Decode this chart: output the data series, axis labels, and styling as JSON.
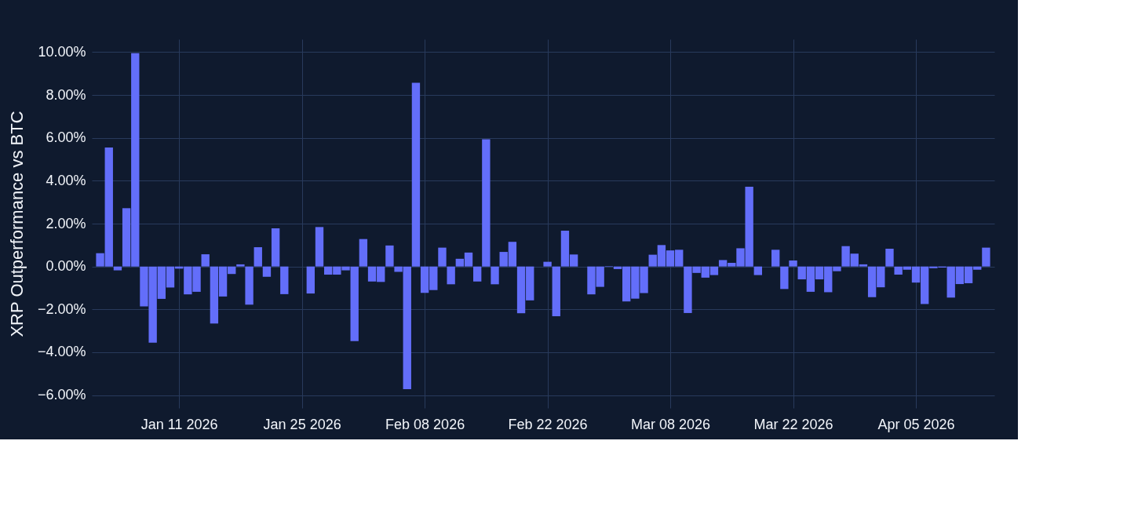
{
  "chart_data": {
    "type": "bar",
    "ylabel": "XRP Outperformance vs BTC",
    "color": "#636efa",
    "grid": true,
    "x": [
      "2026-01-02",
      "2026-01-03",
      "2026-01-04",
      "2026-01-05",
      "2026-01-06",
      "2026-01-07",
      "2026-01-08",
      "2026-01-09",
      "2026-01-10",
      "2026-01-11",
      "2026-01-12",
      "2026-01-13",
      "2026-01-14",
      "2026-01-15",
      "2026-01-16",
      "2026-01-17",
      "2026-01-18",
      "2026-01-19",
      "2026-01-20",
      "2026-01-21",
      "2026-01-22",
      "2026-01-23",
      "2026-01-24",
      "2026-01-25",
      "2026-01-26",
      "2026-01-27",
      "2026-01-28",
      "2026-01-29",
      "2026-01-30",
      "2026-01-31",
      "2026-02-01",
      "2026-02-02",
      "2026-02-03",
      "2026-02-04",
      "2026-02-05",
      "2026-02-06",
      "2026-02-07",
      "2026-02-08",
      "2026-02-09",
      "2026-02-10",
      "2026-02-11",
      "2026-02-12",
      "2026-02-13",
      "2026-02-14",
      "2026-02-15",
      "2026-02-16",
      "2026-02-17",
      "2026-02-18",
      "2026-02-19",
      "2026-02-20",
      "2026-02-21",
      "2026-02-22",
      "2026-02-23",
      "2026-02-24",
      "2026-02-25",
      "2026-02-26",
      "2026-02-27",
      "2026-02-28",
      "2026-03-01",
      "2026-03-02",
      "2026-03-03",
      "2026-03-04",
      "2026-03-05",
      "2026-03-06",
      "2026-03-07",
      "2026-03-08",
      "2026-03-09",
      "2026-03-10",
      "2026-03-11",
      "2026-03-12",
      "2026-03-13",
      "2026-03-14",
      "2026-03-15",
      "2026-03-16",
      "2026-03-17",
      "2026-03-18",
      "2026-03-19",
      "2026-03-20",
      "2026-03-21",
      "2026-03-22",
      "2026-03-23",
      "2026-03-24",
      "2026-03-25",
      "2026-03-26",
      "2026-03-27",
      "2026-03-28",
      "2026-03-29",
      "2026-03-30",
      "2026-03-31",
      "2026-04-01",
      "2026-04-02",
      "2026-04-03",
      "2026-04-04",
      "2026-04-05",
      "2026-04-06",
      "2026-04-07",
      "2026-04-08",
      "2026-04-09",
      "2026-04-10",
      "2026-04-11",
      "2026-04-12",
      "2026-04-13"
    ],
    "values": [
      0.62,
      5.55,
      -0.18,
      2.72,
      9.95,
      -1.86,
      -3.55,
      -1.51,
      -0.98,
      -0.1,
      -1.3,
      -1.18,
      0.57,
      -2.66,
      -1.4,
      -0.35,
      0.1,
      -1.78,
      0.9,
      -0.48,
      1.78,
      -1.29,
      0.0,
      null,
      -1.26,
      1.84,
      -0.38,
      -0.38,
      -0.18,
      -3.48,
      1.28,
      -0.7,
      -0.72,
      0.98,
      -0.25,
      -5.72,
      8.57,
      -1.23,
      -1.1,
      0.88,
      -0.83,
      0.36,
      0.65,
      -0.7,
      5.93,
      -0.83,
      0.68,
      1.15,
      -2.18,
      -1.58,
      0.0,
      0.22,
      -2.32,
      1.67,
      0.56,
      null,
      -1.3,
      -0.95,
      0.02,
      -0.12,
      -1.63,
      -1.5,
      -1.24,
      0.55,
      1.0,
      0.75,
      0.78,
      -2.17,
      -0.3,
      -0.52,
      -0.4,
      0.3,
      0.17,
      0.85,
      3.72,
      -0.4,
      0.0,
      0.78,
      -1.05,
      0.28,
      -0.6,
      -1.18,
      -0.6,
      -1.2,
      -0.22,
      0.95,
      0.6,
      0.1,
      -1.43,
      -0.97,
      0.83,
      -0.38,
      -0.15,
      -0.75,
      -1.75,
      -0.08,
      -0.05,
      -1.45,
      -0.82,
      -0.78,
      -0.15,
      0.88
    ],
    "xlim": [
      "2026-01-01T12:00",
      "2026-04-13T12:00"
    ],
    "xticks": [
      {
        "value": "2026-01-11",
        "label": "Jan 11 2026"
      },
      {
        "value": "2026-01-25",
        "label": "Jan 25 2026"
      },
      {
        "value": "2026-02-08",
        "label": "Feb 08 2026"
      },
      {
        "value": "2026-02-22",
        "label": "Feb 22 2026"
      },
      {
        "value": "2026-03-08",
        "label": "Mar 08 2026"
      },
      {
        "value": "2026-03-22",
        "label": "Mar 22 2026"
      },
      {
        "value": "2026-04-05",
        "label": "Apr 05 2026"
      }
    ],
    "ylim": [
      -6.6,
      10.6
    ],
    "yticks": [
      {
        "value": -6,
        "label": "−6.00%"
      },
      {
        "value": -4,
        "label": "−4.00%"
      },
      {
        "value": -2,
        "label": "−2.00%"
      },
      {
        "value": 0,
        "label": "0.00%"
      },
      {
        "value": 2,
        "label": "2.00%"
      },
      {
        "value": 4,
        "label": "4.00%"
      },
      {
        "value": 6,
        "label": "6.00%"
      },
      {
        "value": 8,
        "label": "8.00%"
      },
      {
        "value": 10,
        "label": "10.00%"
      }
    ]
  }
}
